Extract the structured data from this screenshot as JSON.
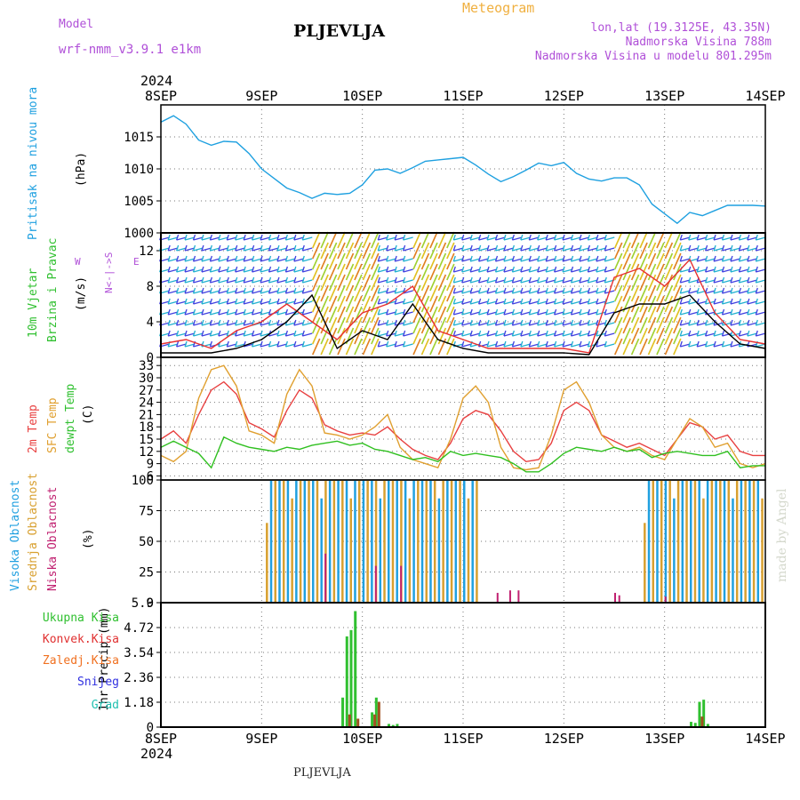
{
  "header": {
    "model_label": "Model",
    "model_name": "wrf-nmm_v3.9.1 e1km",
    "station": "PLJEVLJA",
    "meteogram": "Meteogram",
    "lonlat": "lon,lat (19.3125E, 43.35N)",
    "altitude": "Nadmorska Visina 788m",
    "model_altitude": "Nadmorska Visina u modelu 801.295m",
    "year_top": "2024",
    "year_bottom": "2024",
    "bottom_station": "PLJEVLJA",
    "watermark": "made by Angel"
  },
  "panel_labels": {
    "pressure": "Pritisak na nivou mora",
    "pressure_unit": "(hPa)",
    "wind_1": "10m Vjetar",
    "wind_2": "Brzina i Pravac",
    "wind_unit": "(m/s)",
    "compass": "N<-|->S",
    "compass_w": "W",
    "compass_e": "E",
    "temp_1": "2m Temp",
    "temp_2": "SFC Temp",
    "temp_3": "dewpt Temp",
    "temp_unit": "(C)",
    "cloud_1": "Visoka Oblacnost",
    "cloud_2": "Srednja Oblacnost",
    "cloud_3": "Niska Oblacnost",
    "cloud_unit": "(%)",
    "precip_unit": "1hr Precip (mm)",
    "precip_legend": [
      "Ukupna Kisa",
      "Konvek.Kisa",
      "Zaledj.Kisa",
      "Snijeg",
      "Grad"
    ]
  },
  "colors": {
    "pressure": "#1ea0e0",
    "temp2m": "#e84040",
    "sfc": "#e0a030",
    "dewpt": "#30c020",
    "cloud_high": "#20a0e0",
    "cloud_mid": "#d8a030",
    "cloud_low": "#c02070",
    "total_precip": "#30c030",
    "conv_precip": "#e03030",
    "frz_precip": "#f07020",
    "snow": "#3030e0",
    "hail": "#20c0b0",
    "wind_speed_max": "#e83030",
    "wind_speed_mean": "#000000"
  },
  "chart_data": {
    "x_axis": {
      "ticks": [
        "8SEP",
        "9SEP",
        "10SEP",
        "11SEP",
        "12SEP",
        "13SEP",
        "14SEP"
      ],
      "hours_per_tick": 24,
      "range_hours": [
        0,
        144
      ]
    },
    "panels": [
      {
        "id": "pressure",
        "type": "line",
        "ylim": [
          1000,
          1020
        ],
        "yticks": [
          "1000",
          "1005",
          "1010",
          "1015"
        ],
        "series": [
          {
            "name": "Pritisak na nivou mora",
            "x": [
              0,
              3,
              6,
              9,
              12,
              15,
              18,
              21,
              24,
              27,
              30,
              33,
              36,
              39,
              42,
              45,
              48,
              51,
              54,
              57,
              60,
              63,
              66,
              69,
              72,
              75,
              78,
              81,
              84,
              87,
              90,
              93,
              96,
              99,
              102,
              105,
              108,
              111,
              114,
              117,
              120,
              123,
              126,
              129,
              132,
              135,
              138,
              141,
              144
            ],
            "y": [
              1017.3,
              1018.3,
              1017,
              1014.5,
              1013.7,
              1014.3,
              1014.2,
              1012.4,
              1010,
              1008.5,
              1007,
              1006.3,
              1005.4,
              1006.2,
              1006,
              1006.2,
              1007.5,
              1009.8,
              1010,
              1009.3,
              1010.2,
              1011.2,
              1011.4,
              1011.6,
              1011.8,
              1010.6,
              1009.2,
              1008,
              1008.8,
              1009.8,
              1010.9,
              1010.5,
              1011,
              1009.3,
              1008.4,
              1008.1,
              1008.6,
              1008.6,
              1007.5,
              1004.5,
              1003,
              1001.5,
              1003.2,
              1002.7,
              1003.5,
              1004.3,
              1004.3,
              1004.3,
              1004.2
            ]
          }
        ]
      },
      {
        "id": "wind",
        "type": "line",
        "ylim": [
          0,
          14
        ],
        "yticks": [
          "0",
          "4",
          "8",
          "12"
        ],
        "series": [
          {
            "name": "max",
            "x": [
              0,
              6,
              12,
              18,
              24,
              30,
              36,
              42,
              48,
              54,
              60,
              66,
              72,
              78,
              84,
              90,
              96,
              102,
              108,
              114,
              120,
              126,
              132,
              138,
              144
            ],
            "y": [
              1.5,
              2,
              1,
              3,
              4,
              6,
              4,
              2,
              5,
              6,
              8,
              3,
              2,
              1,
              1,
              1,
              1,
              0.5,
              9,
              10,
              8,
              11,
              5,
              2,
              1.5
            ]
          },
          {
            "name": "mean",
            "x": [
              0,
              6,
              12,
              18,
              24,
              30,
              36,
              42,
              48,
              54,
              60,
              66,
              72,
              78,
              84,
              90,
              96,
              102,
              108,
              114,
              120,
              126,
              132,
              138,
              144
            ],
            "y": [
              0.5,
              0.5,
              0.5,
              1,
              2,
              4,
              7,
              1,
              3,
              2,
              6,
              2,
              1,
              0.5,
              0.5,
              0.5,
              0.5,
              0.3,
              5,
              6,
              6,
              7,
              4,
              1.5,
              1
            ]
          }
        ]
      },
      {
        "id": "temperature",
        "type": "line",
        "ylim": [
          5,
          35
        ],
        "yticks": [
          "6",
          "9",
          "12",
          "15",
          "18",
          "21",
          "24",
          "27",
          "30",
          "33"
        ],
        "series": [
          {
            "name": "2m Temp",
            "x": [
              0,
              3,
              6,
              9,
              12,
              15,
              18,
              21,
              24,
              27,
              30,
              33,
              36,
              39,
              42,
              45,
              48,
              51,
              54,
              57,
              60,
              63,
              66,
              69,
              72,
              75,
              78,
              81,
              84,
              87,
              90,
              93,
              96,
              99,
              102,
              105,
              108,
              111,
              114,
              117,
              120,
              123,
              126,
              129,
              132,
              135,
              138,
              141,
              144
            ],
            "y": [
              15,
              17,
              14,
              21,
              27,
              29,
              26,
              19,
              17.5,
              15.5,
              22,
              27,
              25,
              18.5,
              17,
              16,
              16.5,
              16,
              18,
              15,
              12.5,
              11,
              10,
              14,
              20,
              22,
              21,
              17,
              12,
              9.5,
              10,
              14,
              22,
              24,
              22,
              16,
              14.5,
              13,
              14,
              12.5,
              11,
              15,
              19,
              18,
              15,
              16,
              12,
              11,
              11
            ]
          },
          {
            "name": "SFC Temp",
            "x": [
              0,
              3,
              6,
              9,
              12,
              15,
              18,
              21,
              24,
              27,
              30,
              33,
              36,
              39,
              42,
              45,
              48,
              51,
              54,
              57,
              60,
              63,
              66,
              69,
              72,
              75,
              78,
              81,
              84,
              87,
              90,
              93,
              96,
              99,
              102,
              105,
              108,
              111,
              114,
              117,
              120,
              123,
              126,
              129,
              132,
              135,
              138,
              141,
              144
            ],
            "y": [
              11,
              9.5,
              12,
              25,
              32,
              33,
              28,
              17,
              16,
              14,
              26,
              32,
              28,
              16.5,
              16,
              15,
              16,
              18,
              21,
              13,
              10,
              9,
              8,
              15,
              25,
              28,
              24,
              13,
              8,
              7.5,
              8,
              16,
              27,
              29,
              24,
              16,
              13,
              12,
              13,
              11,
              10,
              15,
              20,
              18,
              13,
              14,
              9,
              8,
              9
            ]
          },
          {
            "name": "dewpt Temp",
            "x": [
              0,
              3,
              6,
              9,
              12,
              15,
              18,
              21,
              24,
              27,
              30,
              33,
              36,
              39,
              42,
              45,
              48,
              51,
              54,
              57,
              60,
              63,
              66,
              69,
              72,
              75,
              78,
              81,
              84,
              87,
              90,
              93,
              96,
              99,
              102,
              105,
              108,
              111,
              114,
              117,
              120,
              123,
              126,
              129,
              132,
              135,
              138,
              141,
              144
            ],
            "y": [
              13,
              14.5,
              13,
              11.5,
              8,
              15.5,
              14,
              13,
              12.5,
              12,
              13,
              12.5,
              13.5,
              14,
              14.5,
              13.5,
              14,
              12.5,
              12,
              11,
              10,
              10.5,
              9.5,
              12,
              11,
              11.5,
              11,
              10.5,
              9,
              7,
              7,
              9,
              11.5,
              13,
              12.5,
              12,
              13,
              12,
              12.5,
              10.5,
              11.5,
              12,
              11.5,
              11,
              11,
              12,
              8,
              8.5,
              8.5
            ]
          }
        ]
      },
      {
        "id": "clouds",
        "type": "bar",
        "ylim": [
          0,
          100
        ],
        "yticks": [
          "0",
          "25",
          "50",
          "75",
          "100"
        ],
        "series": [
          {
            "name": "Visoka Oblacnost",
            "start_hour": 25,
            "end_hour": 76,
            "value": 100
          },
          {
            "name": "Visoka Oblacnost",
            "start_hour": 115,
            "end_hour": 144,
            "value": 100
          },
          {
            "name": "Niska Oblacnost",
            "x": [
              39,
              51,
              57,
              80,
              83,
              85,
              108,
              109,
              120
            ],
            "y": [
              40,
              30,
              30,
              8,
              10,
              10,
              8,
              6,
              5
            ]
          }
        ]
      },
      {
        "id": "precip",
        "type": "bar",
        "ylim": [
          0,
          5.9
        ],
        "yticks": [
          "0",
          "1.18",
          "2.36",
          "3.54",
          "4.72",
          "5.9"
        ],
        "series": [
          {
            "name": "Ukupna Kisa",
            "x": [
              43,
              44,
              45,
              46,
              50,
              51,
              54,
              55,
              56,
              126,
              127,
              128,
              129,
              130
            ],
            "y": [
              1.4,
              4.3,
              4.6,
              5.5,
              0.7,
              1.4,
              0.15,
              0.1,
              0.15,
              0.25,
              0.2,
              1.2,
              1.3,
              0.15
            ]
          },
          {
            "name": "Konvek.Kisa",
            "x": [
              44,
              46,
              50,
              51,
              128
            ],
            "y": [
              0.6,
              0.4,
              0.6,
              1.2,
              0.5
            ]
          }
        ]
      }
    ]
  }
}
